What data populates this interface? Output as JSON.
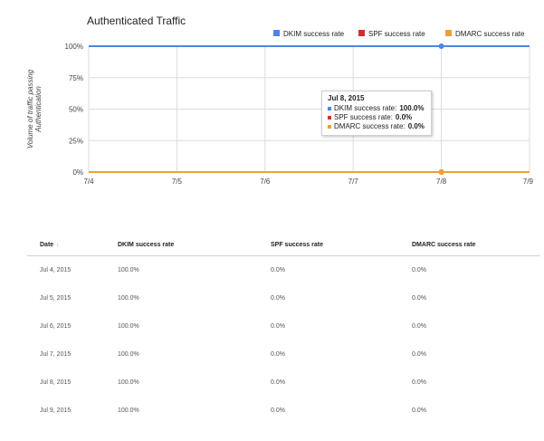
{
  "chart_data": {
    "type": "line",
    "title": "Authenticated Traffic",
    "ylabel": "Volume of traffic passing Authentication",
    "ylabel_lines": [
      "Volume of traffic passing",
      "Authentication"
    ],
    "categories": [
      "7/4",
      "7/5",
      "7/6",
      "7/7",
      "7/8",
      "7/9"
    ],
    "y_ticks": [
      "0%",
      "25%",
      "50%",
      "75%",
      "100%"
    ],
    "ylim": [
      0,
      100
    ],
    "grid": true,
    "legend_position": "top-right",
    "series": [
      {
        "name": "DKIM success rate",
        "values": [
          100,
          100,
          100,
          100,
          100,
          100
        ],
        "color": "#4a86e8"
      },
      {
        "name": "SPF success rate",
        "values": [
          0,
          0,
          0,
          0,
          0,
          0
        ],
        "color": "#cc3232"
      },
      {
        "name": "DMARC success rate",
        "values": [
          0,
          0,
          0,
          0,
          0,
          0
        ],
        "color": "#f0a030"
      }
    ],
    "highlighted_category": "7/8"
  },
  "tooltip": {
    "date": "Jul 8, 2015",
    "rows": [
      {
        "label": "DKIM success rate:",
        "value": "100.0%",
        "color": "#4a86e8"
      },
      {
        "label": "SPF success rate:",
        "value": "0.0%",
        "color": "#cc3232"
      },
      {
        "label": "DMARC success rate:",
        "value": "0.0%",
        "color": "#f0a030"
      }
    ]
  },
  "table": {
    "headers": [
      "Date",
      "DKIM success rate",
      "SPF success rate",
      "DMARC success rate"
    ],
    "sort_indicator": "↓",
    "rows": [
      [
        "Jul 4, 2015",
        "100.0%",
        "0.0%",
        "0.0%"
      ],
      [
        "Jul 5, 2015",
        "100.0%",
        "0.0%",
        "0.0%"
      ],
      [
        "Jul 6, 2015",
        "100.0%",
        "0.0%",
        "0.0%"
      ],
      [
        "Jul 7, 2015",
        "100.0%",
        "0.0%",
        "0.0%"
      ],
      [
        "Jul 8, 2015",
        "100.0%",
        "0.0%",
        "0.0%"
      ],
      [
        "Jul 9, 2015",
        "100.0%",
        "0.0%",
        "0.0%"
      ]
    ]
  }
}
